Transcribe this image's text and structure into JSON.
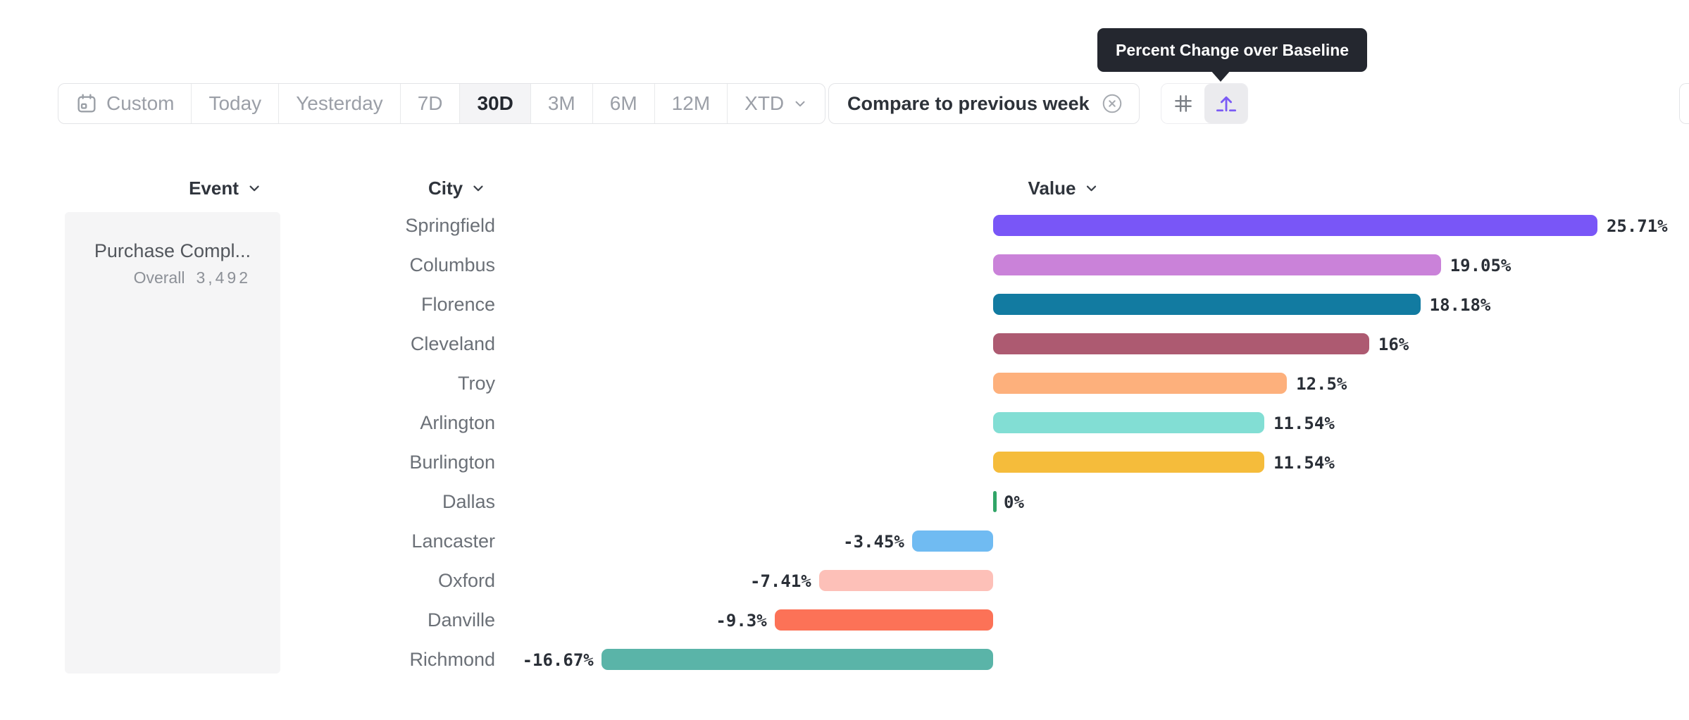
{
  "toolbar": {
    "date_ranges": [
      {
        "label": "Custom",
        "icon": "calendar-icon",
        "selected": false
      },
      {
        "label": "Today",
        "selected": false
      },
      {
        "label": "Yesterday",
        "selected": false
      },
      {
        "label": "7D",
        "selected": false
      },
      {
        "label": "30D",
        "selected": true
      },
      {
        "label": "3M",
        "selected": false
      },
      {
        "label": "6M",
        "selected": false
      },
      {
        "label": "12M",
        "selected": false
      },
      {
        "label": "XTD",
        "chevron": "chevron-down-icon",
        "selected": false
      }
    ],
    "compare_chip": {
      "label": "Compare to previous week",
      "close_icon": "circle-x-icon"
    },
    "view_toggle": {
      "options": [
        {
          "icon": "hash-grid-icon",
          "selected": false
        },
        {
          "icon": "baseline-arrow-icon",
          "selected": true,
          "accent_color": "#7b5bf5"
        }
      ]
    }
  },
  "tooltip": {
    "text": "Percent Change over Baseline",
    "background": "#24272f",
    "text_color": "#ffffff"
  },
  "columns": {
    "event": {
      "label": "Event",
      "chevron": "chevron-down-icon"
    },
    "city": {
      "label": "City",
      "chevron": "chevron-down-icon"
    },
    "value": {
      "label": "Value",
      "chevron": "chevron-down-icon"
    }
  },
  "event_panel": {
    "event_name": "Purchase Compl...",
    "metric_label": "Overall",
    "metric_value": "3,492"
  },
  "chart_data": {
    "type": "bar",
    "orientation": "horizontal",
    "title": "Percent Change over Baseline",
    "categories": [
      "Springfield",
      "Columbus",
      "Florence",
      "Cleveland",
      "Troy",
      "Arlington",
      "Burlington",
      "Dallas",
      "Lancaster",
      "Oxford",
      "Danville",
      "Richmond"
    ],
    "values": [
      25.71,
      19.05,
      18.18,
      16,
      12.5,
      11.54,
      11.54,
      0,
      -3.45,
      -7.41,
      -9.3,
      -16.67
    ],
    "labels": [
      "25.71%",
      "19.05%",
      "18.18%",
      "16%",
      "12.5%",
      "11.54%",
      "11.54%",
      "0%",
      "-3.45%",
      "-7.41%",
      "-9.3%",
      "-16.67%"
    ],
    "colors": [
      "#7956f7",
      "#ca82d9",
      "#127ba1",
      "#ad5a71",
      "#fdb07c",
      "#82ded4",
      "#f5bc3b",
      "#31a568",
      "#70bbf2",
      "#fdc0b8",
      "#fc7257",
      "#5ab4a8"
    ],
    "zero_tick_color": "#31a568",
    "baseline": 0,
    "xlim": [
      -18,
      29
    ],
    "grid": false,
    "legend": "none",
    "value_label_position": "end-of-bar"
  }
}
